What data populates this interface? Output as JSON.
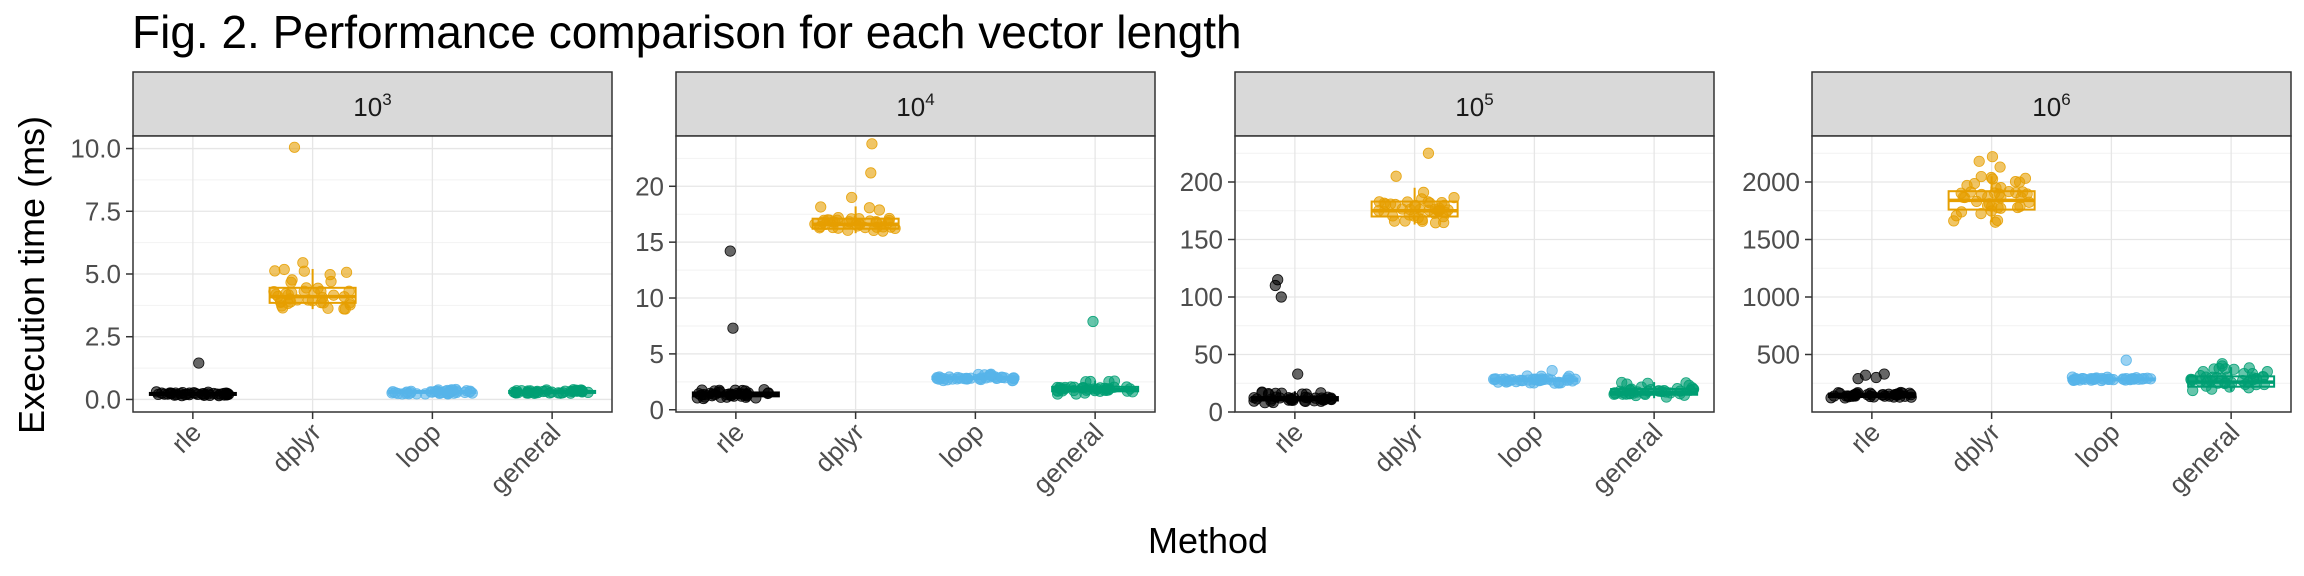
{
  "title": "Fig. 2. Performance comparison for each vector length",
  "chart_data": {
    "type": "boxplot",
    "xlabel": "Method",
    "ylabel": "Execution time (ms)",
    "categories": [
      "rle",
      "dplyr",
      "loop",
      "general"
    ],
    "colors": {
      "rle": "#000000",
      "dplyr": "#E69F00",
      "loop": "#56B4E9",
      "general": "#009E73"
    },
    "grid": true,
    "panels": [
      {
        "strip_base": "10",
        "strip_exp": "3",
        "ylim": [
          -0.5,
          10.5
        ],
        "yticks": [
          0.0,
          2.5,
          5.0,
          7.5,
          10.0
        ],
        "ytick_labels": [
          "0.0",
          "2.5",
          "5.0",
          "7.5",
          "10.0"
        ],
        "boxes": {
          "rle": [
            0.15,
            0.18,
            0.22,
            0.26,
            0.32
          ],
          "dplyr": [
            3.6,
            3.85,
            4.1,
            4.45,
            5.2
          ],
          "loop": [
            0.22,
            0.26,
            0.3,
            0.34,
            0.4
          ],
          "general": [
            0.22,
            0.26,
            0.3,
            0.34,
            0.4
          ]
        },
        "outliers": {
          "rle": [
            1.45
          ],
          "dplyr": [
            10.05,
            5.45
          ],
          "loop": [],
          "general": []
        }
      },
      {
        "strip_base": "10",
        "strip_exp": "4",
        "ylim": [
          -0.2,
          24.5
        ],
        "yticks": [
          0,
          5,
          10,
          15,
          20
        ],
        "ytick_labels": [
          "0",
          "5",
          "10",
          "15",
          "20"
        ],
        "boxes": {
          "rle": [
            1.0,
            1.2,
            1.35,
            1.55,
            1.8
          ],
          "dplyr": [
            15.8,
            16.2,
            16.6,
            17.1,
            18.2
          ],
          "loop": [
            2.6,
            2.75,
            2.85,
            2.95,
            3.2
          ],
          "general": [
            1.4,
            1.65,
            1.8,
            2.05,
            2.6
          ]
        },
        "outliers": {
          "rle": [
            14.2,
            7.3
          ],
          "dplyr": [
            23.8,
            21.2,
            19.0
          ],
          "loop": [],
          "general": [
            7.9
          ]
        }
      },
      {
        "strip_base": "10",
        "strip_exp": "5",
        "ylim": [
          0,
          240
        ],
        "yticks": [
          0,
          50,
          100,
          150,
          200
        ],
        "ytick_labels": [
          "0",
          "50",
          "100",
          "150",
          "200"
        ],
        "boxes": {
          "rle": [
            8,
            10,
            12,
            13,
            18
          ],
          "dplyr": [
            163,
            170,
            175,
            183,
            195
          ],
          "loop": [
            25,
            27,
            28,
            29,
            32
          ],
          "general": [
            12,
            15,
            17,
            20,
            26
          ]
        },
        "outliers": {
          "rle": [
            115,
            110,
            100,
            33
          ],
          "dplyr": [
            225,
            205
          ],
          "loop": [
            36
          ],
          "general": []
        }
      },
      {
        "strip_base": "10",
        "strip_exp": "6",
        "ylim": [
          0,
          2400
        ],
        "yticks": [
          500,
          1000,
          1500,
          2000
        ],
        "ytick_labels": [
          "500",
          "1000",
          "1500",
          "2000"
        ],
        "boxes": {
          "rle": [
            120,
            130,
            145,
            160,
            180
          ],
          "dplyr": [
            1650,
            1760,
            1840,
            1920,
            2050
          ],
          "loop": [
            270,
            280,
            285,
            292,
            305
          ],
          "general": [
            180,
            220,
            260,
            310,
            390
          ]
        },
        "outliers": {
          "rle": [
            330,
            320,
            300,
            290
          ],
          "dplyr": [
            2220,
            2180,
            2130
          ],
          "loop": [
            450
          ],
          "general": [
            420,
            400
          ]
        }
      }
    ]
  }
}
